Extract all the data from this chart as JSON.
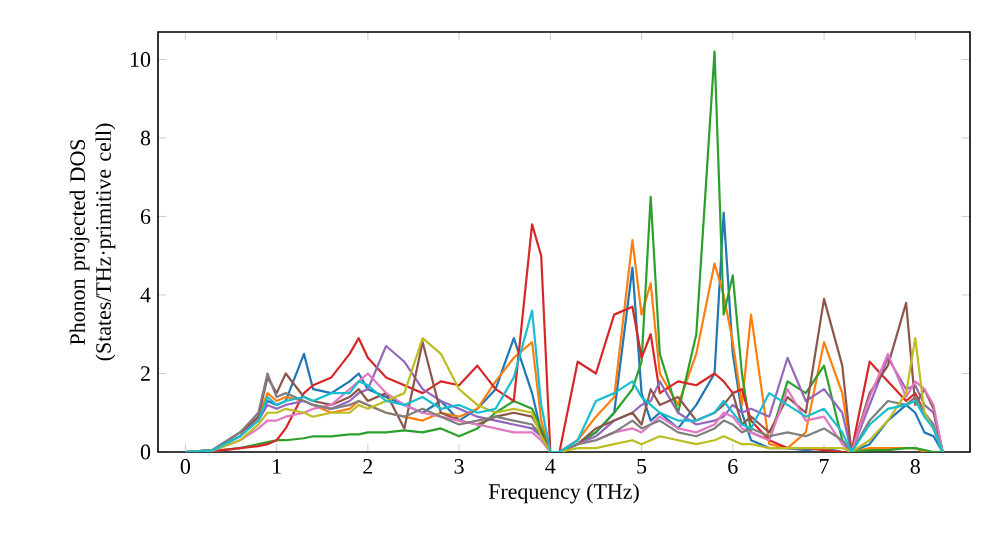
{
  "chart_data": {
    "type": "line",
    "xlabel": "Frequency (THz)",
    "ylabel": "Phonon projected DOS (States/THz·primitive cell)",
    "xlim": [
      -0.3,
      8.6
    ],
    "ylim": [
      0,
      10.7
    ],
    "xticks": [
      0,
      1,
      2,
      3,
      4,
      5,
      6,
      7,
      8
    ],
    "yticks": [
      0,
      2,
      4,
      6,
      8,
      10
    ],
    "grid": false,
    "marker": "none",
    "line_style": "solid",
    "x": [
      0,
      0.3,
      0.6,
      0.8,
      0.9,
      1.0,
      1.1,
      1.3,
      1.4,
      1.6,
      1.8,
      1.9,
      2.0,
      2.2,
      2.4,
      2.6,
      2.8,
      3.0,
      3.2,
      3.4,
      3.6,
      3.8,
      3.9,
      4.0,
      4.1,
      4.3,
      4.5,
      4.7,
      4.9,
      5.0,
      5.1,
      5.2,
      5.4,
      5.6,
      5.8,
      5.9,
      6.0,
      6.1,
      6.2,
      6.4,
      6.6,
      6.8,
      7.0,
      7.2,
      7.3,
      7.5,
      7.7,
      7.9,
      8.0,
      8.1,
      8.2,
      8.3
    ],
    "series": [
      {
        "color": "#1f77b4",
        "values": [
          0,
          0.05,
          0.4,
          0.9,
          1.3,
          1.2,
          1.3,
          2.5,
          1.6,
          1.5,
          1.8,
          2.0,
          1.6,
          1.4,
          1.2,
          1.0,
          1.3,
          0.8,
          1.1,
          1.6,
          2.9,
          1.5,
          0.5,
          0,
          0,
          0.2,
          0.5,
          1.0,
          4.7,
          1.5,
          0.8,
          1.0,
          0.6,
          1.2,
          2.0,
          6.1,
          2.5,
          1.0,
          0.3,
          0.1,
          0.1,
          0.05,
          0.1,
          0,
          0,
          0.2,
          0.8,
          1.2,
          1.0,
          0.5,
          0.4,
          0
        ]
      },
      {
        "color": "#ff7f0e",
        "values": [
          null,
          null,
          0.4,
          0.9,
          1.5,
          1.3,
          1.4,
          1.3,
          1.2,
          1.0,
          1.1,
          1.3,
          1.2,
          1.0,
          0.9,
          0.8,
          1.0,
          0.9,
          1.1,
          1.8,
          2.4,
          2.8,
          0.8,
          0,
          0,
          0.3,
          0.9,
          1.4,
          5.4,
          3.5,
          4.3,
          2.0,
          1.2,
          2.5,
          4.8,
          4.0,
          2.8,
          1.2,
          3.5,
          0.2,
          0.1,
          0.5,
          2.8,
          1.5,
          0,
          0.1,
          0.1,
          0.1,
          0.1,
          0,
          0,
          0
        ]
      },
      {
        "color": "#2ca02c",
        "values": [
          0,
          0.02,
          0.1,
          0.2,
          0.25,
          0.3,
          0.3,
          0.35,
          0.4,
          0.4,
          0.45,
          0.45,
          0.5,
          0.5,
          0.55,
          0.5,
          0.6,
          0.4,
          0.6,
          1.0,
          1.3,
          1.1,
          0.6,
          0,
          0,
          0.2,
          0.5,
          1.0,
          1.6,
          2.3,
          6.5,
          2.5,
          1.0,
          3.0,
          10.2,
          3.5,
          4.5,
          2.0,
          0.5,
          0.3,
          1.8,
          1.5,
          2.2,
          0.3,
          0,
          0.05,
          0.05,
          0.1,
          0.1,
          0.05,
          0,
          0
        ]
      },
      {
        "color": "#d62728",
        "values": [
          0,
          0.02,
          0.1,
          0.15,
          0.2,
          0.3,
          0.6,
          1.5,
          1.7,
          1.9,
          2.5,
          2.9,
          2.4,
          1.9,
          1.7,
          1.5,
          1.8,
          1.7,
          2.2,
          1.6,
          1.3,
          5.8,
          5.0,
          0,
          0,
          2.3,
          2.0,
          3.5,
          3.7,
          2.4,
          3.0,
          1.5,
          1.8,
          1.7,
          2.0,
          1.8,
          1.5,
          1.6,
          0.8,
          0.3,
          0.1,
          0.1,
          0.05,
          0,
          0,
          2.3,
          1.8,
          1.3,
          1.5,
          1.0,
          0.6,
          0
        ]
      },
      {
        "color": "#9467bd",
        "values": [
          0,
          0.05,
          0.5,
          0.8,
          1.2,
          1.1,
          1.2,
          1.3,
          1.2,
          1.1,
          1.3,
          1.5,
          1.6,
          2.7,
          2.3,
          1.6,
          1.3,
          1.1,
          0.9,
          0.8,
          0.7,
          0.6,
          0.4,
          0,
          0,
          0.2,
          0.4,
          0.8,
          1.0,
          1.2,
          1.3,
          1.8,
          1.0,
          0.7,
          0.8,
          0.9,
          1.2,
          1.0,
          1.1,
          0.9,
          2.4,
          1.3,
          1.6,
          1.0,
          0,
          1.2,
          2.4,
          1.6,
          1.7,
          1.2,
          1.0,
          0
        ]
      },
      {
        "color": "#8c564b",
        "values": [
          0,
          0.05,
          0.5,
          0.9,
          1.9,
          1.5,
          2.0,
          1.4,
          1.3,
          1.2,
          1.4,
          1.6,
          1.3,
          1.5,
          0.6,
          2.8,
          1.0,
          0.8,
          0.7,
          0.9,
          1.0,
          0.9,
          0.5,
          0,
          0,
          0.2,
          0.6,
          0.8,
          1.0,
          0.7,
          1.6,
          1.2,
          1.4,
          0.8,
          1.0,
          1.2,
          1.5,
          0.7,
          0.9,
          0.5,
          1.4,
          1.0,
          3.9,
          2.2,
          0,
          1.5,
          2.2,
          3.8,
          1.2,
          1.6,
          1.1,
          0
        ]
      },
      {
        "color": "#e377c2",
        "values": [
          0,
          0.03,
          0.3,
          0.6,
          0.8,
          0.8,
          0.9,
          1.0,
          1.1,
          1.2,
          1.6,
          1.8,
          2.0,
          1.5,
          1.2,
          1.0,
          0.9,
          0.8,
          0.7,
          0.6,
          0.5,
          0.5,
          0.3,
          0,
          0,
          0.2,
          0.3,
          0.5,
          0.6,
          0.5,
          0.7,
          0.9,
          0.6,
          0.5,
          0.7,
          1.0,
          0.9,
          0.6,
          0.5,
          0.3,
          1.6,
          0.8,
          0.9,
          0.2,
          0,
          1.4,
          2.5,
          1.4,
          1.8,
          1.6,
          1.2,
          0
        ]
      },
      {
        "color": "#7f7f7f",
        "values": [
          0,
          0.05,
          0.5,
          1.0,
          2.0,
          1.4,
          1.5,
          1.3,
          1.2,
          1.1,
          1.2,
          1.3,
          1.2,
          1.0,
          0.9,
          1.1,
          0.9,
          0.7,
          0.8,
          0.9,
          0.8,
          0.7,
          0.4,
          0,
          0,
          0.2,
          0.3,
          0.5,
          0.8,
          0.6,
          0.7,
          0.8,
          0.5,
          0.4,
          0.6,
          0.8,
          0.7,
          0.5,
          0.6,
          0.4,
          0.5,
          0.4,
          0.6,
          0.3,
          0,
          0.8,
          1.3,
          1.2,
          1.4,
          1.0,
          0.7,
          0
        ]
      },
      {
        "color": "#bcbd22",
        "values": [
          0,
          0.04,
          0.3,
          0.7,
          1.0,
          1.0,
          1.1,
          1.0,
          0.9,
          1.0,
          1.0,
          1.2,
          1.1,
          1.3,
          1.5,
          2.9,
          2.5,
          1.6,
          1.2,
          1.0,
          1.1,
          1.0,
          0.4,
          0,
          0,
          0.1,
          0.1,
          0.2,
          0.3,
          0.2,
          0.3,
          0.4,
          0.3,
          0.2,
          0.3,
          0.4,
          0.3,
          0.2,
          0.2,
          0.1,
          0.1,
          0.1,
          0.1,
          0.1,
          0,
          0.3,
          0.8,
          1.5,
          2.9,
          1.0,
          0.6,
          0
        ]
      },
      {
        "color": "#17becf",
        "values": [
          0,
          0.04,
          0.4,
          0.8,
          1.4,
          1.2,
          1.3,
          1.4,
          1.3,
          1.5,
          1.5,
          1.8,
          1.7,
          1.3,
          1.2,
          1.4,
          1.1,
          1.2,
          1.0,
          1.1,
          1.9,
          3.6,
          1.2,
          0,
          0,
          0.3,
          1.3,
          1.5,
          1.8,
          1.4,
          1.2,
          1.0,
          0.8,
          0.8,
          1.0,
          1.3,
          1.0,
          0.7,
          0.6,
          1.5,
          1.2,
          0.9,
          1.1,
          0.5,
          0,
          0.7,
          1.1,
          1.2,
          1.3,
          0.9,
          0.6,
          0
        ]
      }
    ]
  }
}
